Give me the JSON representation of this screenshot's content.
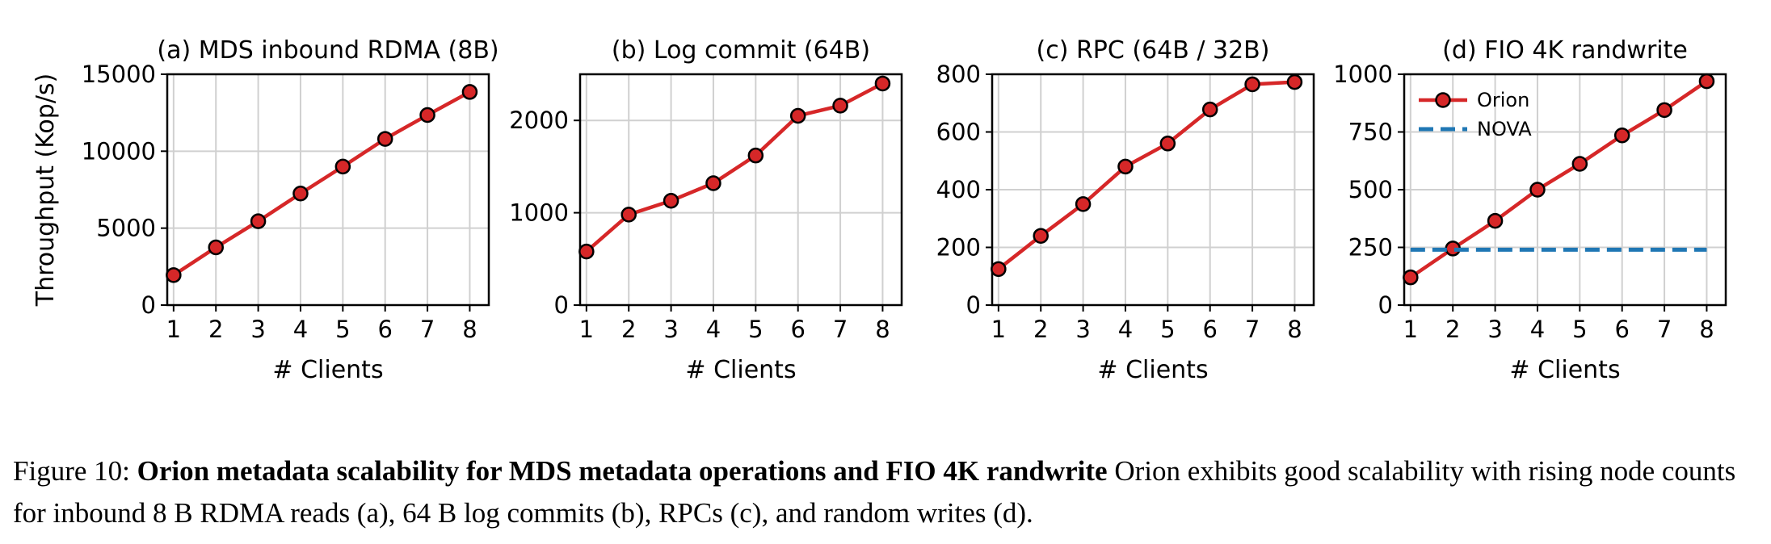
{
  "figure": {
    "caption_label": "Figure 10:",
    "caption_bold": "Orion metadata scalability for MDS metadata operations and FIO 4K randwrite",
    "caption_text": "Orion exhibits good scalability with rising node counts for inbound 8 B RDMA reads (a), 64 B log commits (b), RPCs (c), and random writes (d)."
  },
  "chart_data": [
    {
      "type": "line",
      "title": "(a) MDS inbound RDMA (8B)",
      "xlabel": "# Clients",
      "ylabel": "Throughput (Kop/s)",
      "x": [
        1,
        2,
        3,
        4,
        5,
        6,
        7,
        8
      ],
      "xticks": [
        1,
        2,
        3,
        4,
        5,
        6,
        7,
        8
      ],
      "xlim": [
        0.85,
        8.45
      ],
      "ylim": [
        0,
        15000
      ],
      "yticks": [
        0,
        5000,
        10000,
        15000
      ],
      "grid": true,
      "series": [
        {
          "values": [
            1950,
            3750,
            5450,
            7250,
            9000,
            10800,
            12350,
            13850
          ],
          "color": "#d62728"
        }
      ]
    },
    {
      "type": "line",
      "title": "(b) Log commit (64B)",
      "xlabel": "# Clients",
      "ylabel": "",
      "x": [
        1,
        2,
        3,
        4,
        5,
        6,
        7,
        8
      ],
      "xticks": [
        1,
        2,
        3,
        4,
        5,
        6,
        7,
        8
      ],
      "xlim": [
        0.85,
        8.45
      ],
      "ylim": [
        0,
        2500
      ],
      "yticks": [
        0,
        1000,
        2000
      ],
      "grid": true,
      "series": [
        {
          "values": [
            580,
            980,
            1130,
            1320,
            1620,
            2050,
            2160,
            2400
          ],
          "color": "#d62728"
        }
      ]
    },
    {
      "type": "line",
      "title": "(c) RPC (64B / 32B)",
      "xlabel": "# Clients",
      "ylabel": "",
      "x": [
        1,
        2,
        3,
        4,
        5,
        6,
        7,
        8
      ],
      "xticks": [
        1,
        2,
        3,
        4,
        5,
        6,
        7,
        8
      ],
      "xlim": [
        0.85,
        8.45
      ],
      "ylim": [
        0,
        800
      ],
      "yticks": [
        0,
        200,
        400,
        600,
        800
      ],
      "grid": true,
      "series": [
        {
          "values": [
            125,
            240,
            350,
            480,
            560,
            678,
            765,
            773
          ],
          "color": "#d62728"
        }
      ]
    },
    {
      "type": "line",
      "title": "(d) FIO 4K randwrite",
      "xlabel": "# Clients",
      "ylabel": "",
      "x": [
        1,
        2,
        3,
        4,
        5,
        6,
        7,
        8
      ],
      "xticks": [
        1,
        2,
        3,
        4,
        5,
        6,
        7,
        8
      ],
      "xlim": [
        0.85,
        8.45
      ],
      "ylim": [
        0,
        1000
      ],
      "yticks": [
        0,
        250,
        500,
        750,
        1000
      ],
      "grid": true,
      "legend": "top-left",
      "series": [
        {
          "name": "Orion",
          "values": [
            120,
            245,
            365,
            500,
            612,
            735,
            845,
            970
          ],
          "color": "#d62728"
        },
        {
          "name": "NOVA",
          "values": [
            240,
            240,
            240,
            240,
            240,
            240,
            240,
            240
          ],
          "color": "#1f77b4",
          "dashed": true,
          "x_extent": [
            1,
            8
          ]
        }
      ]
    }
  ]
}
